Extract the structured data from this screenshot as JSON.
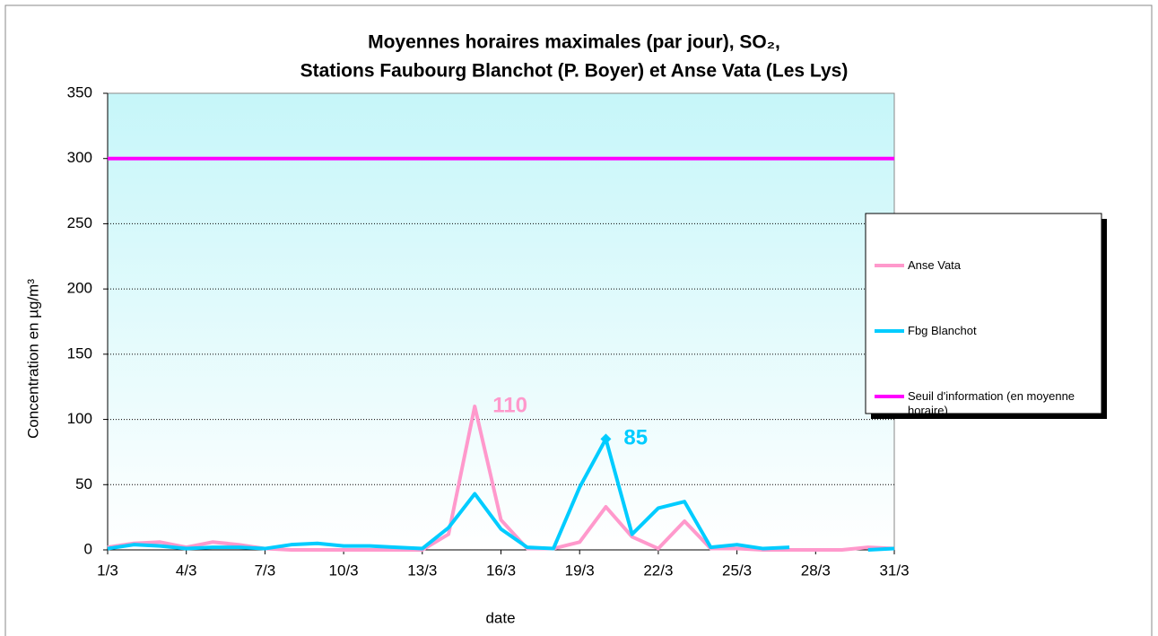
{
  "chart_data": {
    "type": "line",
    "title": [
      "Moyennes horaires maximales (par jour), SO₂,",
      "Stations Faubourg Blanchot (P. Boyer) et Anse Vata (Les Lys)"
    ],
    "x_label": "date",
    "y_label": "Concentration en µg/m³",
    "categories": [
      "1/3",
      null,
      null,
      "4/3",
      null,
      null,
      "7/3",
      null,
      null,
      "10/3",
      null,
      null,
      "13/3",
      null,
      null,
      "16/3",
      null,
      null,
      "19/3",
      null,
      null,
      "22/3",
      null,
      null,
      "25/3",
      null,
      null,
      "28/3",
      null,
      null,
      "31/3"
    ],
    "series": [
      {
        "name": "Anse Vata",
        "color": "#ff99cc",
        "label_at": 14,
        "values": [
          2,
          5,
          6,
          2,
          6,
          4,
          1,
          0,
          0,
          0,
          0,
          0,
          0,
          12,
          110,
          23,
          1,
          1,
          6,
          33,
          10,
          1,
          22,
          1,
          1,
          0,
          0,
          0,
          0,
          2,
          1
        ]
      },
      {
        "name": "Fbg Blanchot",
        "color": "#00ccff",
        "label_at": 19,
        "values": [
          1,
          4,
          3,
          1,
          2,
          2,
          1,
          4,
          5,
          3,
          3,
          2,
          1,
          17,
          43,
          16,
          2,
          1,
          48,
          85,
          12,
          32,
          37,
          2,
          4,
          1,
          2,
          null,
          null,
          0,
          1
        ]
      },
      {
        "name": "Seuil d'information (en moyenne horaire)",
        "color": "#ff00ff",
        "values": [
          300,
          300,
          300,
          300,
          300,
          300,
          300,
          300,
          300,
          300,
          300,
          300,
          300,
          300,
          300,
          300,
          300,
          300,
          300,
          300,
          300,
          300,
          300,
          300,
          300,
          300,
          300,
          300,
          300,
          300,
          300
        ]
      }
    ],
    "ylim": [
      0,
      350
    ],
    "yticks": [
      0,
      50,
      100,
      150,
      200,
      250,
      300,
      350
    ],
    "grid": true,
    "legend": "right"
  }
}
